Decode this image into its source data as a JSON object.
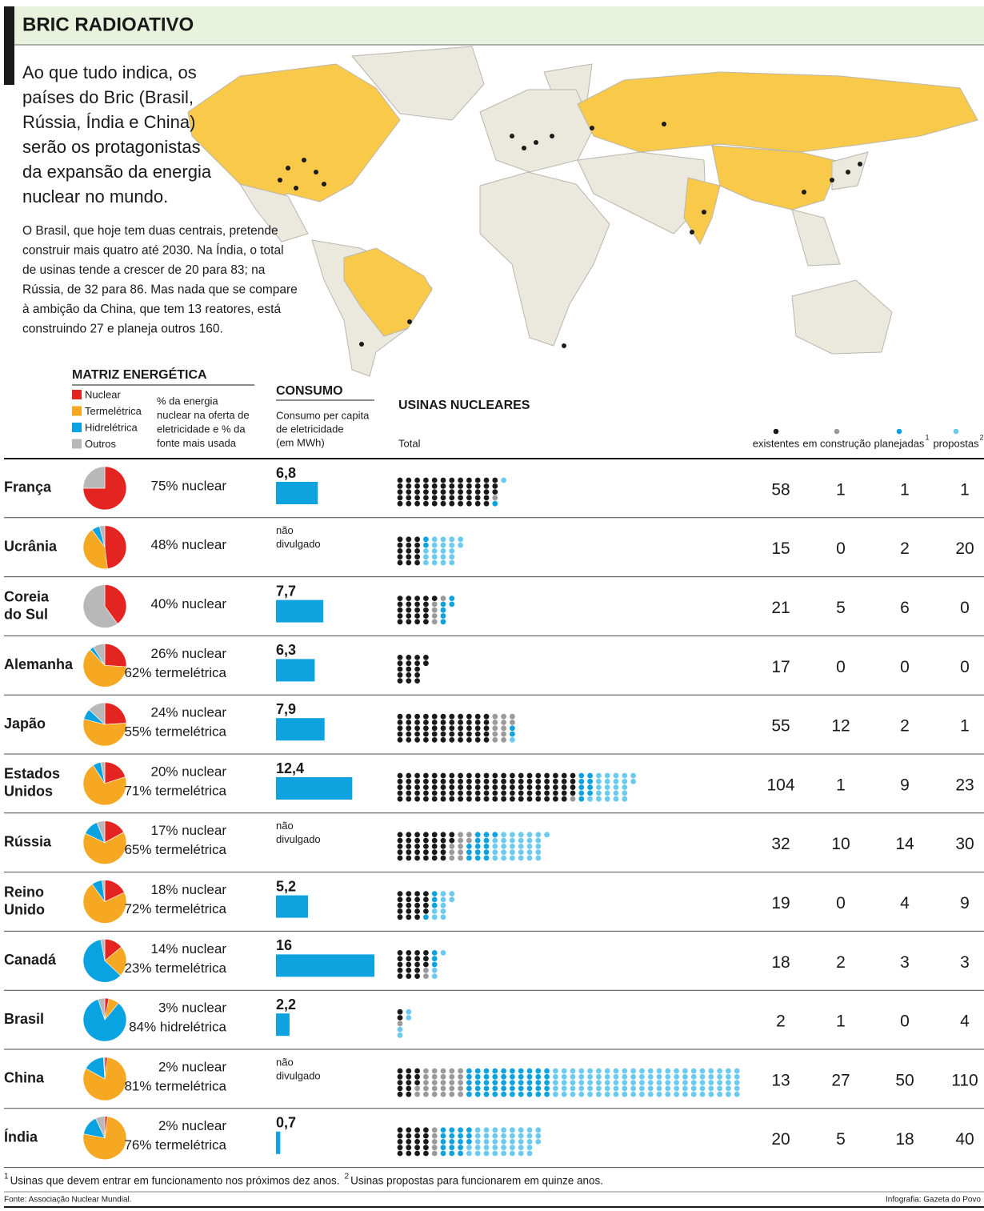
{
  "header": {
    "title": "BRIC RADIOATIVO"
  },
  "intro": [
    "Ao que tudo indica, os",
    "países do Bric (Brasil,",
    "Rússia, Índia e China)",
    "serão os protagonistas",
    "da expansão da energia",
    "nuclear no mundo."
  ],
  "body": [
    "O Brasil, que hoje tem duas centrais, pretende",
    "construir mais quatro até 2030. Na Índia, o total",
    "de usinas tende a crescer de 20 para 83; na",
    "Rússia, de 32 para 86. Mas nada que se compare",
    "à ambição da China, que tem 13 reatores, está",
    "construindo 27 e planeja outros 160."
  ],
  "matriz": {
    "title": "MATRIZ ENERGÉTICA",
    "fontes": [
      {
        "name": "Nuclear",
        "color": "#e42421"
      },
      {
        "name": "Termelétrica",
        "color": "#f7a823"
      },
      {
        "name": "Hidrelétrica",
        "color": "#0aa3e2"
      },
      {
        "name": "Outros",
        "color": "#b8b8b8"
      }
    ],
    "description": [
      "% da energia",
      "nuclear na oferta de",
      "eletricidade e % da",
      "fonte mais usada"
    ]
  },
  "consumo": {
    "title": "CONSUMO",
    "description": [
      "Consumo per capita",
      "de eletricidade",
      "(em MWh)"
    ]
  },
  "usinas": {
    "title": "USINAS NUCLEARES",
    "total": "Total",
    "categories": [
      {
        "name": "existentes",
        "color": "#1a1a1a"
      },
      {
        "name": "em construção",
        "color": "#9a9a9a"
      },
      {
        "name": "planejadas",
        "note": "1",
        "color": "#0ea2df"
      },
      {
        "name": "propostas",
        "note": "2",
        "color": "#6ccaf0"
      }
    ]
  },
  "rows": [
    {
      "country": [
        "França"
      ],
      "shares": [
        75,
        0,
        0,
        25
      ],
      "energia": [
        "75% nuclear"
      ],
      "consumo": 6.8,
      "consumo_label": [
        "6,8"
      ],
      "usinas": [
        58,
        1,
        1,
        1
      ]
    },
    {
      "country": [
        "Ucrânia"
      ],
      "shares": [
        48,
        42,
        6,
        4
      ],
      "energia": [
        "48% nuclear"
      ],
      "consumo": null,
      "consumo_label": [
        "não",
        "divulgado"
      ],
      "usinas": [
        15,
        0,
        2,
        20
      ]
    },
    {
      "country": [
        "Coreia",
        "do Sul"
      ],
      "shares": [
        40,
        0,
        0,
        60
      ],
      "energia": [
        "40% nuclear"
      ],
      "consumo": 7.7,
      "consumo_label": [
        "7,7"
      ],
      "usinas": [
        21,
        5,
        6,
        0
      ]
    },
    {
      "country": [
        "Alemanha"
      ],
      "shares": [
        26,
        62,
        3,
        9
      ],
      "energia": [
        "26% nuclear",
        "62% termelétrica"
      ],
      "consumo": 6.3,
      "consumo_label": [
        "6,3"
      ],
      "usinas": [
        17,
        0,
        0,
        0
      ]
    },
    {
      "country": [
        "Japão"
      ],
      "shares": [
        24,
        55,
        8,
        13
      ],
      "energia": [
        "24% nuclear",
        "55% termelétrica"
      ],
      "consumo": 7.9,
      "consumo_label": [
        "7,9"
      ],
      "usinas": [
        55,
        12,
        2,
        1
      ]
    },
    {
      "country": [
        "Estados",
        "Unidos"
      ],
      "shares": [
        20,
        71,
        6,
        3
      ],
      "energia": [
        "20% nuclear",
        "71% termelétrica"
      ],
      "consumo": 12.4,
      "consumo_label": [
        "12,4"
      ],
      "usinas": [
        104,
        1,
        9,
        23
      ]
    },
    {
      "country": [
        "Rússia"
      ],
      "shares": [
        17,
        65,
        12,
        6
      ],
      "energia": [
        "17% nuclear",
        "65% termelétrica"
      ],
      "consumo": null,
      "consumo_label": [
        "não",
        "divulgado"
      ],
      "usinas": [
        32,
        10,
        14,
        30
      ]
    },
    {
      "country": [
        "Reino",
        "Unido"
      ],
      "shares": [
        18,
        72,
        8,
        2
      ],
      "energia": [
        "18% nuclear",
        "72% termelétrica"
      ],
      "consumo": 5.2,
      "consumo_label": [
        "5,2"
      ],
      "usinas": [
        19,
        0,
        4,
        9
      ]
    },
    {
      "country": [
        "Canadá"
      ],
      "shares": [
        14,
        23,
        60,
        3
      ],
      "energia": [
        "14% nuclear",
        "23% termelétrica"
      ],
      "consumo": 16,
      "consumo_label": [
        "16"
      ],
      "usinas": [
        18,
        2,
        3,
        3
      ]
    },
    {
      "country": [
        "Brasil"
      ],
      "shares": [
        3,
        8,
        84,
        5
      ],
      "energia": [
        "3% nuclear",
        "84% hidrelétrica"
      ],
      "consumo": 2.2,
      "consumo_label": [
        "2,2"
      ],
      "usinas": [
        2,
        1,
        0,
        4
      ]
    },
    {
      "country": [
        "China"
      ],
      "shares": [
        2,
        81,
        16,
        1
      ],
      "energia": [
        "2% nuclear",
        "81% termelétrica"
      ],
      "consumo": null,
      "consumo_label": [
        "não",
        "divulgado"
      ],
      "usinas": [
        13,
        27,
        50,
        110
      ]
    },
    {
      "country": [
        "Índia"
      ],
      "shares": [
        2,
        76,
        15,
        7
      ],
      "energia": [
        "2% nuclear",
        "76% termelétrica"
      ],
      "consumo": 0.7,
      "consumo_label": [
        "0,7"
      ],
      "usinas": [
        20,
        5,
        18,
        40
      ]
    }
  ],
  "footer": {
    "notes": [
      {
        "mark": "1",
        "text": "Usinas que devem entrar em funcionamento nos próximos dez anos."
      },
      {
        "mark": "2",
        "text": "Usinas propostas para funcionarem em quinze anos."
      }
    ],
    "source": "Fonte: Associação Nuclear Mundial.",
    "credit": "Infografia: Gazeta do Povo"
  }
}
